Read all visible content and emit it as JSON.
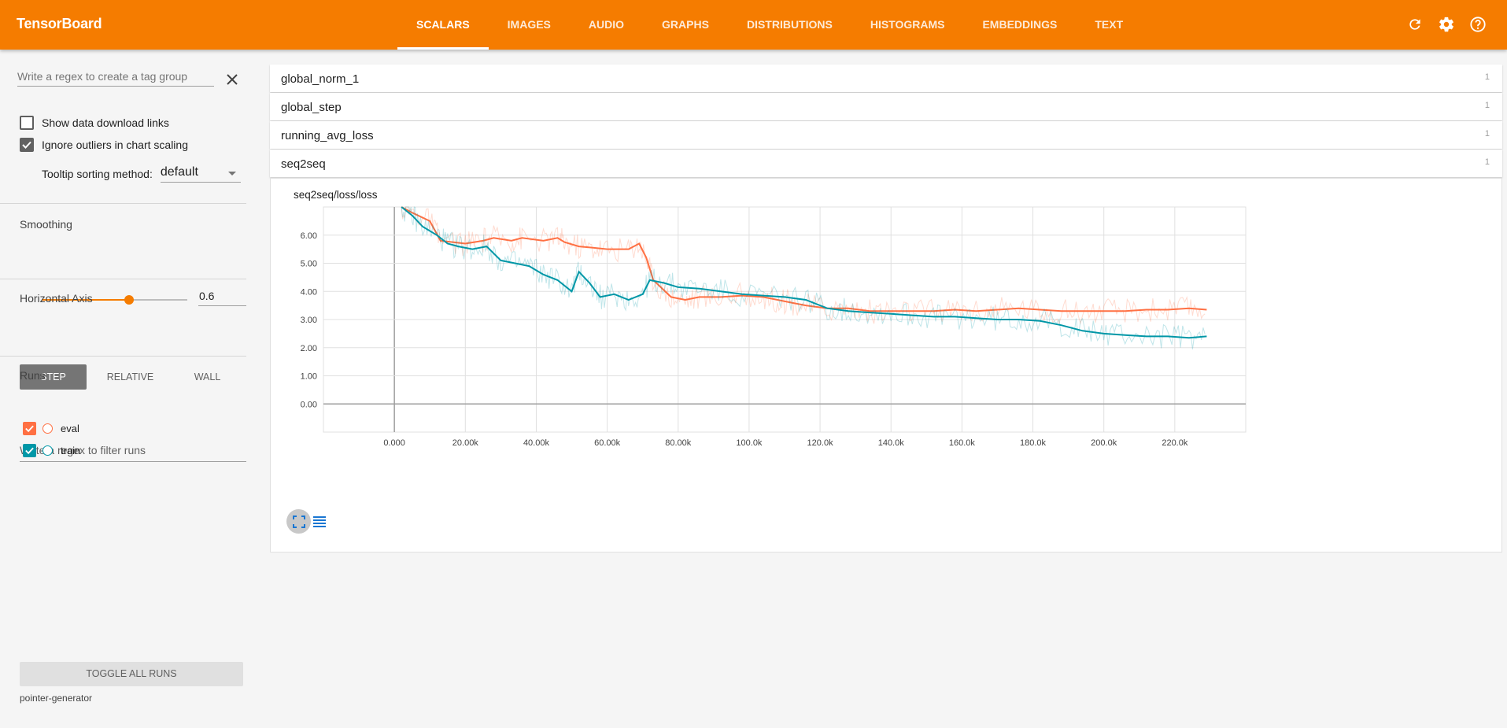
{
  "header": {
    "title": "TensorBoard",
    "tabs": [
      {
        "label": "SCALARS"
      },
      {
        "label": "IMAGES"
      },
      {
        "label": "AUDIO"
      },
      {
        "label": "GRAPHS"
      },
      {
        "label": "DISTRIBUTIONS"
      },
      {
        "label": "HISTOGRAMS"
      },
      {
        "label": "EMBEDDINGS"
      },
      {
        "label": "TEXT"
      }
    ],
    "active_tab": "SCALARS",
    "icons": [
      "refresh-icon",
      "settings-icon",
      "help-icon"
    ]
  },
  "sidebar": {
    "tag_regex_placeholder": "Write a regex to create a tag group",
    "show_download_label": "Show data download links",
    "show_download_checked": false,
    "ignore_outliers_label": "Ignore outliers in chart scaling",
    "ignore_outliers_checked": true,
    "tooltip_label": "Tooltip sorting method:",
    "tooltip_value": "default",
    "smoothing_label": "Smoothing",
    "smoothing_value": "0.6",
    "smoothing_fraction": 0.6,
    "horizontal_axis_label": "Horizontal Axis",
    "axis_options": [
      "STEP",
      "RELATIVE",
      "WALL"
    ],
    "axis_selected": "STEP",
    "runs_label": "Runs",
    "runs_filter_placeholder": "Write a regex to filter runs",
    "runs": [
      {
        "name": "eval",
        "color": "#ff7043",
        "checked": true
      },
      {
        "name": "train",
        "color": "#0097a7",
        "checked": true
      }
    ],
    "toggle_all_label": "TOGGLE ALL RUNS",
    "logdir": "pointer-generator"
  },
  "categories": [
    {
      "name": "global_norm_1",
      "count": "1"
    },
    {
      "name": "global_step",
      "count": "1"
    },
    {
      "name": "running_avg_loss",
      "count": "1"
    },
    {
      "name": "seq2seq",
      "count": "1"
    }
  ],
  "chart_data": {
    "type": "line",
    "title": "seq2seq/loss/loss",
    "xlabel": "",
    "ylabel": "",
    "x_ticks": [
      "0.000",
      "20.00k",
      "40.00k",
      "60.00k",
      "80.00k",
      "100.0k",
      "120.0k",
      "140.0k",
      "160.0k",
      "180.0k",
      "200.0k",
      "220.0k"
    ],
    "y_ticks": [
      "0.00",
      "1.00",
      "2.00",
      "3.00",
      "4.00",
      "5.00",
      "6.00"
    ],
    "xlim": [
      -20000,
      240000
    ],
    "ylim": [
      -1,
      7
    ],
    "grid": true,
    "series": [
      {
        "name": "eval",
        "color": "#ff7043",
        "x": [
          2000,
          5000,
          10000,
          13000,
          20000,
          25000,
          28000,
          33000,
          36000,
          42000,
          46000,
          48000,
          52000,
          56000,
          60000,
          66000,
          69000,
          71000,
          73000,
          78000,
          82000,
          86000,
          92000,
          98000,
          104000,
          108000,
          112000,
          116000,
          122000,
          128000,
          134000,
          140000,
          146000,
          152000,
          158000,
          164000,
          170000,
          176000,
          182000,
          188000,
          194000,
          200000,
          206000,
          212000,
          218000,
          224000,
          229000
        ],
        "y": [
          7.0,
          6.8,
          6.5,
          5.8,
          5.7,
          5.8,
          5.9,
          5.8,
          5.9,
          5.8,
          5.9,
          5.75,
          5.6,
          5.55,
          5.5,
          5.5,
          5.7,
          5.2,
          4.4,
          3.8,
          3.7,
          3.8,
          3.8,
          3.85,
          3.8,
          3.7,
          3.6,
          3.5,
          3.4,
          3.4,
          3.3,
          3.3,
          3.3,
          3.3,
          3.35,
          3.3,
          3.35,
          3.4,
          3.35,
          3.3,
          3.3,
          3.3,
          3.3,
          3.35,
          3.35,
          3.4,
          3.35
        ]
      },
      {
        "name": "train",
        "color": "#0097a7",
        "x": [
          2000,
          5000,
          8000,
          12000,
          15000,
          18000,
          22000,
          26000,
          30000,
          34000,
          38000,
          42000,
          46000,
          50000,
          52000,
          55000,
          58000,
          62000,
          66000,
          70000,
          72000,
          76000,
          80000,
          86000,
          92000,
          98000,
          104000,
          110000,
          116000,
          122000,
          128000,
          134000,
          140000,
          146000,
          152000,
          158000,
          164000,
          170000,
          176000,
          182000,
          188000,
          194000,
          200000,
          206000,
          212000,
          218000,
          224000,
          229000
        ],
        "y": [
          7.0,
          6.7,
          6.3,
          6.0,
          5.7,
          5.6,
          5.5,
          5.6,
          5.1,
          5.0,
          4.9,
          4.6,
          4.4,
          4.0,
          4.7,
          4.3,
          3.8,
          3.9,
          3.7,
          3.9,
          4.4,
          4.3,
          4.15,
          4.1,
          4.0,
          3.9,
          3.85,
          3.8,
          3.7,
          3.4,
          3.3,
          3.25,
          3.2,
          3.15,
          3.1,
          3.1,
          3.05,
          3.0,
          3.0,
          2.95,
          2.8,
          2.6,
          2.5,
          2.45,
          2.4,
          2.4,
          2.35,
          2.4
        ]
      }
    ]
  }
}
